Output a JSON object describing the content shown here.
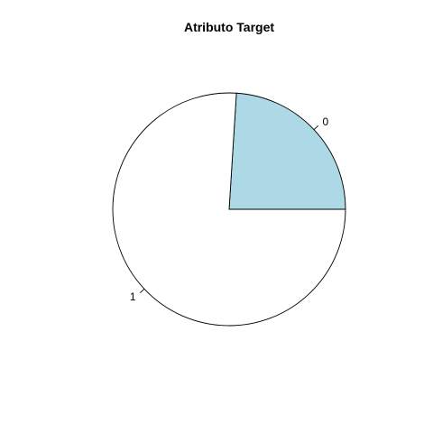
{
  "chart_data": {
    "type": "pie",
    "title": "Atributo Target",
    "categories": [
      "0",
      "1"
    ],
    "values": [
      24,
      76
    ],
    "colors": [
      "#add8e6",
      "#ffffff"
    ],
    "start_angle_deg": 0,
    "direction": "counterclockwise",
    "border_color": "#000000"
  }
}
